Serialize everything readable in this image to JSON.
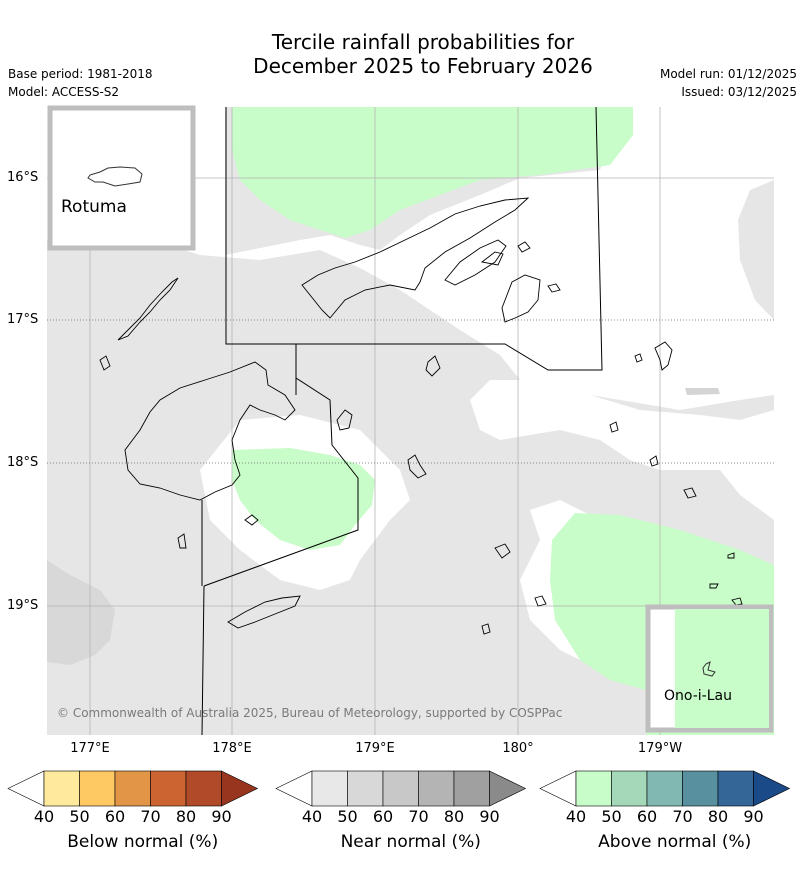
{
  "header": {
    "title_line1": "Tercile rainfall probabilities for",
    "title_line2": "December 2025 to February 2026",
    "base_period": "Base period: 1981-2018",
    "model": "Model: ACCESS-S2",
    "model_run": "Model run: 01/12/2025",
    "issued": "Issued: 03/12/2025"
  },
  "map": {
    "lat_labels": [
      "16°S",
      "17°S",
      "18°S",
      "19°S"
    ],
    "lon_labels": [
      "177°E",
      "178°E",
      "179°E",
      "180°",
      "179°W"
    ],
    "copyright": "© Commonwealth of Australia 2025, Bureau of Meteorology, supported by COSPPac",
    "inset_rotuma": "Rotuma",
    "inset_ono": "Ono-i-Lau",
    "colors": {
      "near_normal_40": "#e6e6e6",
      "above_normal_40": "#c8fcc8",
      "grid": "#b4b4b4",
      "coast": "#000000",
      "inset_frame": "#bebebe"
    }
  },
  "colorbars": [
    {
      "label": "Below normal (%)",
      "ticks": [
        "40",
        "50",
        "60",
        "70",
        "80",
        "90"
      ],
      "colors": [
        "#ffffff",
        "#fee99c",
        "#fec863",
        "#e29447",
        "#cc6432",
        "#b04a28",
        "#98351f"
      ]
    },
    {
      "label": "Near normal (%)",
      "ticks": [
        "40",
        "50",
        "60",
        "70",
        "80",
        "90"
      ],
      "colors": [
        "#ffffff",
        "#e8e8e8",
        "#d8d8d8",
        "#c8c8c8",
        "#b4b4b4",
        "#a0a0a0",
        "#8a8a8a"
      ]
    },
    {
      "label": "Above normal (%)",
      "ticks": [
        "40",
        "50",
        "60",
        "70",
        "80",
        "90"
      ],
      "colors": [
        "#ffffff",
        "#c8fcc8",
        "#a4d8b8",
        "#82b8b2",
        "#5890a0",
        "#346698",
        "#1a4a88"
      ]
    }
  ]
}
